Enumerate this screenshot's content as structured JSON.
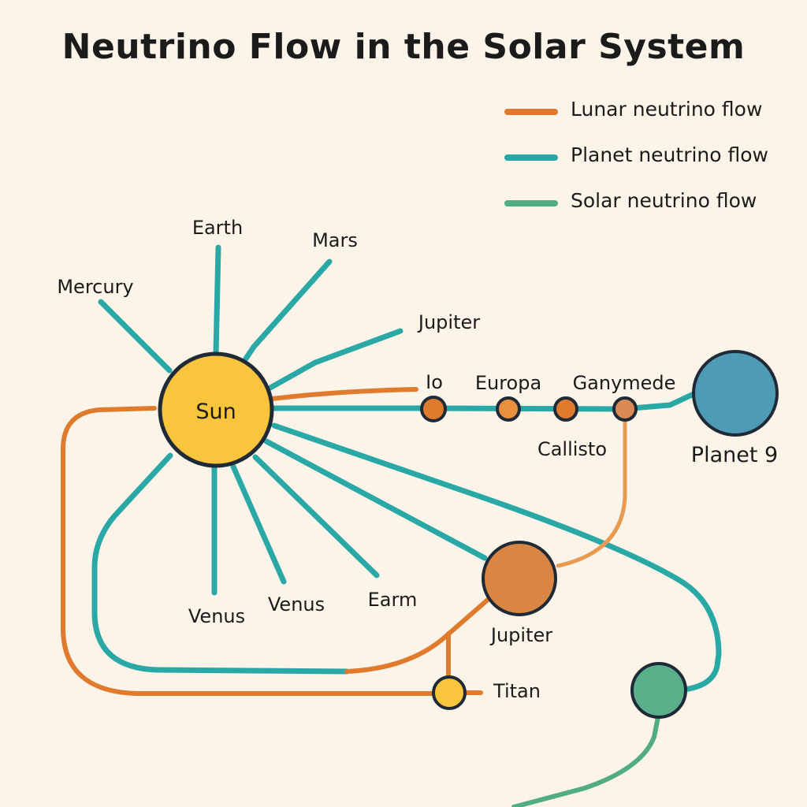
{
  "title": "Neutrino Flow in the Solar System",
  "colors": {
    "background": "#fcf4e9",
    "lunar_flow": "#e07b2e",
    "planet_flow": "#2aa8a6",
    "solar_flow": "#52ad84",
    "sun": "#f8c53c",
    "planet9": "#4e9bb6",
    "jupiter_node": "#d98544",
    "moon_node": "#e07b2e",
    "ganymede_node": "#d98a55",
    "titan": "#f8c53c",
    "solar_node": "#5ab08a",
    "outline": "#1f2a36"
  },
  "legend": [
    {
      "label": "Lunar neutrino flow",
      "color": "#e07b2e"
    },
    {
      "label": "Planet neutrino flow",
      "color": "#2aa8a6"
    },
    {
      "label": "Solar neutrino flow",
      "color": "#52ad84"
    }
  ],
  "labels": {
    "sun": "Sun",
    "earth_top": "Earth",
    "mars": "Mars",
    "mercury": "Mercury",
    "jupiter_ray": "Jupiter",
    "io": "Io",
    "europa": "Europa",
    "ganymede": "Ganymede",
    "callisto": "Callisto",
    "planet9": "Planet 9",
    "venus_left": "Venus",
    "venus_right": "Venus",
    "earm": "Earm",
    "jupiter_node": "Jupiter",
    "titan": "Titan"
  }
}
